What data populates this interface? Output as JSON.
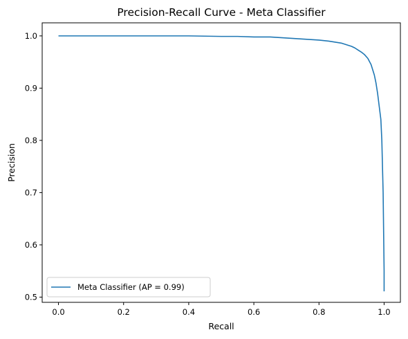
{
  "chart_data": {
    "type": "line",
    "title": "Precision-Recall Curve - Meta Classifier",
    "xlabel": "Recall",
    "ylabel": "Precision",
    "xlim": [
      -0.05,
      1.05
    ],
    "ylim": [
      0.49,
      1.025
    ],
    "xticks": [
      0.0,
      0.2,
      0.4,
      0.6,
      0.8,
      1.0
    ],
    "xtick_labels": [
      "0.0",
      "0.2",
      "0.4",
      "0.6",
      "0.8",
      "1.0"
    ],
    "yticks": [
      0.5,
      0.6,
      0.7,
      0.8,
      0.9,
      1.0
    ],
    "ytick_labels": [
      "0.5",
      "0.6",
      "0.7",
      "0.8",
      "0.9",
      "1.0"
    ],
    "grid": false,
    "legend_position": "lower-left",
    "series": [
      {
        "name": "Meta Classifier (AP = 0.99)",
        "color": "#1f77b4",
        "x": [
          0.0,
          0.1,
          0.2,
          0.3,
          0.4,
          0.5,
          0.55,
          0.6,
          0.65,
          0.7,
          0.75,
          0.8,
          0.83,
          0.85,
          0.87,
          0.89,
          0.9,
          0.91,
          0.92,
          0.93,
          0.94,
          0.95,
          0.96,
          0.97,
          0.975,
          0.98,
          0.985,
          0.99,
          0.993,
          0.995,
          0.997,
          0.998,
          0.999,
          1.0,
          1.0
        ],
        "y": [
          1.0,
          1.0,
          1.0,
          1.0,
          1.0,
          0.999,
          0.999,
          0.998,
          0.998,
          0.996,
          0.994,
          0.992,
          0.99,
          0.988,
          0.986,
          0.982,
          0.98,
          0.977,
          0.973,
          0.969,
          0.964,
          0.957,
          0.945,
          0.925,
          0.91,
          0.89,
          0.865,
          0.84,
          0.8,
          0.75,
          0.7,
          0.65,
          0.6,
          0.55,
          0.511
        ]
      }
    ]
  }
}
